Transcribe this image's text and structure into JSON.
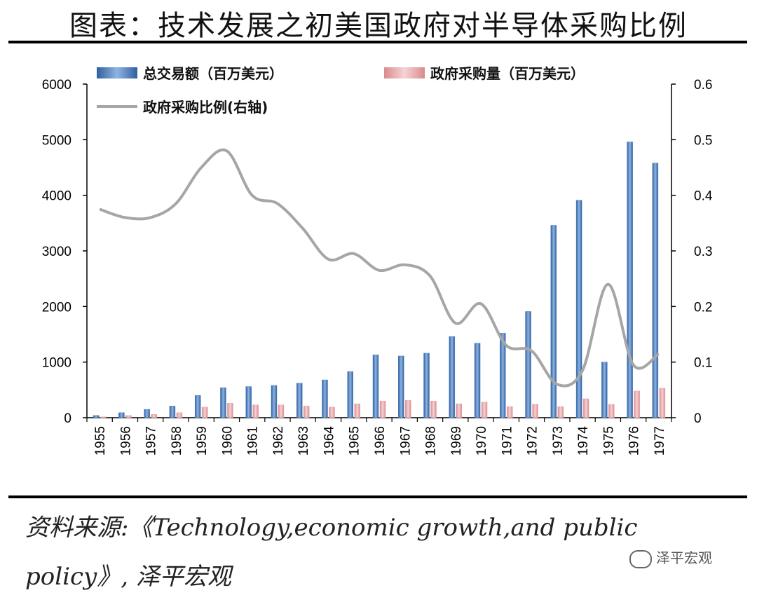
{
  "page_title": "图表：技术发展之初美国政府对半导体采购比例",
  "source_line1": "资料来源:《Technology,economic growth,and public",
  "source_line2": "policy》, 泽平宏观",
  "watermark": "泽平宏观",
  "colors": {
    "bar_total": "#4a7fc0",
    "bar_gov": "#e8a3a6",
    "line": "#a6a6a6",
    "axis": "#000000"
  },
  "chart_data": {
    "type": "bar",
    "title": "技术发展之初美国政府对半导体采购比例",
    "categories": [
      "1955",
      "1956",
      "1957",
      "1958",
      "1959",
      "1960",
      "1961",
      "1962",
      "1963",
      "1964",
      "1965",
      "1966",
      "1967",
      "1968",
      "1969",
      "1970",
      "1971",
      "1972",
      "1973",
      "1974",
      "1975",
      "1976",
      "1977"
    ],
    "series": [
      {
        "name": "总交易额（百万美元）",
        "kind": "bar",
        "axis": "left",
        "values": [
          40,
          90,
          150,
          210,
          400,
          540,
          560,
          580,
          620,
          680,
          830,
          1130,
          1110,
          1160,
          1460,
          1340,
          1520,
          1910,
          3460,
          3910,
          1000,
          4960,
          4580
        ]
      },
      {
        "name": "政府采购量（百万美元）",
        "kind": "bar",
        "axis": "left",
        "values": [
          15,
          40,
          60,
          90,
          190,
          260,
          230,
          230,
          210,
          190,
          250,
          300,
          310,
          300,
          250,
          280,
          200,
          240,
          200,
          340,
          240,
          480,
          530
        ]
      },
      {
        "name": "政府采购比例(右轴)",
        "kind": "line",
        "axis": "right",
        "values": [
          0.375,
          0.36,
          0.36,
          0.385,
          0.45,
          0.48,
          0.4,
          0.385,
          0.34,
          0.285,
          0.295,
          0.265,
          0.275,
          0.255,
          0.17,
          0.205,
          0.13,
          0.12,
          0.06,
          0.085,
          0.24,
          0.095,
          0.115
        ]
      }
    ],
    "ylim": [
      0,
      6000
    ],
    "yticks": [
      "0",
      "1000",
      "2000",
      "3000",
      "4000",
      "5000",
      "6000"
    ],
    "y2lim": [
      0,
      0.6
    ],
    "y2ticks": [
      "0",
      "0.1",
      "0.2",
      "0.3",
      "0.4",
      "0.5",
      "0.6"
    ],
    "xlabel": "",
    "ylabel": "",
    "y2label": "",
    "legend_position": "top",
    "grid": false
  }
}
